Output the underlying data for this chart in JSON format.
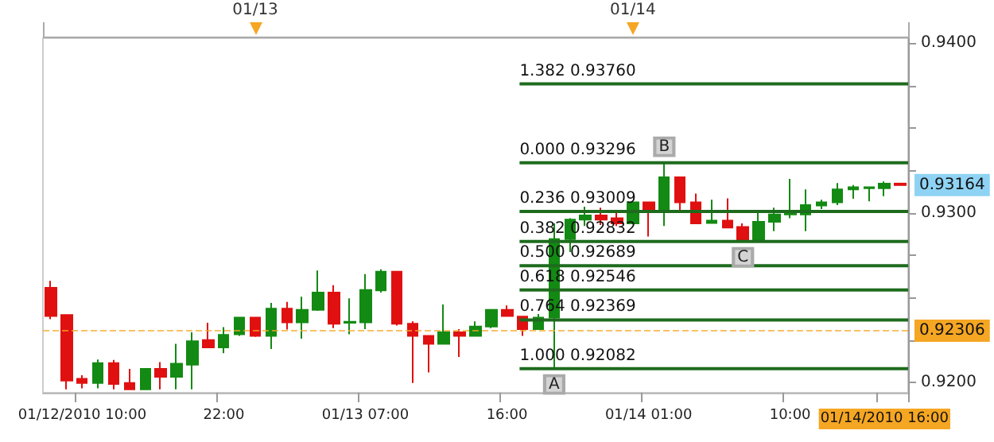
{
  "chart_data": {
    "type": "candlestick",
    "categories": [
      null,
      null,
      "01/12/2010 10:00",
      null,
      null,
      null,
      null,
      null,
      null,
      null,
      null,
      "22:00",
      null,
      null,
      null,
      null,
      null,
      null,
      null,
      null,
      "01/13 07:00",
      null,
      null,
      null,
      null,
      null,
      null,
      null,
      null,
      "16:00",
      null,
      null,
      null,
      null,
      null,
      null,
      null,
      null,
      "01/14 01:00",
      null,
      null,
      null,
      null,
      null,
      null,
      null,
      null,
      "10:00",
      null,
      null,
      null,
      null,
      null,
      "01/14/2010 16:00",
      null
    ],
    "ohlc": [
      [
        0.92559,
        0.92599,
        0.92373,
        0.92392
      ],
      [
        0.92398,
        0.92398,
        0.9196,
        0.92012
      ],
      [
        0.92022,
        0.92043,
        0.91966,
        0.91997
      ],
      [
        0.91997,
        0.92136,
        0.91966,
        0.92114
      ],
      [
        0.92114,
        0.92133,
        0.9196,
        0.91991
      ],
      [
        0.91997,
        0.9208,
        0.9196,
        0.9196
      ],
      [
        0.9196,
        0.9208,
        0.9196,
        0.9208
      ],
      [
        0.9208,
        0.9212,
        0.9196,
        0.92034
      ],
      [
        0.92034,
        0.92228,
        0.9196,
        0.92111
      ],
      [
        0.92105,
        0.92296,
        0.9196,
        0.92244
      ],
      [
        0.9225,
        0.92352,
        0.92207,
        0.92207
      ],
      [
        0.92207,
        0.92327,
        0.92173,
        0.92281
      ],
      [
        0.92284,
        0.92383,
        0.92275,
        0.92383
      ],
      [
        0.92383,
        0.92383,
        0.92269,
        0.92275
      ],
      [
        0.92275,
        0.92469,
        0.92198,
        0.92435
      ],
      [
        0.92435,
        0.92475,
        0.92312,
        0.92355
      ],
      [
        0.92355,
        0.92506,
        0.92259,
        0.92429
      ],
      [
        0.92429,
        0.9266,
        0.92423,
        0.92531
      ],
      [
        0.92531,
        0.92574,
        0.92321,
        0.92346
      ],
      [
        0.92352,
        0.92497,
        0.92284,
        0.92358
      ],
      [
        0.92355,
        0.92639,
        0.92315,
        0.92546
      ],
      [
        0.92543,
        0.92667,
        0.92531,
        0.92654
      ],
      [
        0.92654,
        0.92654,
        0.92336,
        0.92346
      ],
      [
        0.92346,
        0.92361,
        0.91997,
        0.92275
      ],
      [
        0.92275,
        0.92275,
        0.92059,
        0.92228
      ],
      [
        0.92228,
        0.9246,
        0.92228,
        0.92296
      ],
      [
        0.92296,
        0.92315,
        0.92151,
        0.92275
      ],
      [
        0.92275,
        0.92361,
        0.92275,
        0.9233
      ],
      [
        0.9233,
        0.92429,
        0.92321,
        0.92429
      ],
      [
        0.92429,
        0.92454,
        0.92392,
        0.92392
      ],
      [
        0.92389,
        0.92389,
        0.92275,
        0.92315
      ],
      [
        0.92315,
        0.92404,
        0.92315,
        0.92383
      ],
      [
        0.92383,
        0.92938,
        0.92082,
        0.92846
      ],
      [
        0.92846,
        0.92969,
        0.92769,
        0.9296
      ],
      [
        0.9296,
        0.93037,
        0.92923,
        0.92985
      ],
      [
        0.92985,
        0.93031,
        0.92929,
        0.9296
      ],
      [
        0.92969,
        0.93,
        0.92923,
        0.92938
      ],
      [
        0.92938,
        0.93062,
        0.92938,
        0.93062
      ],
      [
        0.93062,
        0.93062,
        0.92861,
        0.93006
      ],
      [
        0.93006,
        0.93296,
        0.92923,
        0.9321
      ],
      [
        0.9321,
        0.9321,
        0.93015,
        0.93062
      ],
      [
        0.93062,
        0.93114,
        0.92938,
        0.92938
      ],
      [
        0.92941,
        0.93077,
        0.92938,
        0.92954
      ],
      [
        0.92954,
        0.93086,
        0.92914,
        0.92914
      ],
      [
        0.92917,
        0.92938,
        0.92832,
        0.92832
      ],
      [
        0.92832,
        0.93015,
        0.92832,
        0.92948
      ],
      [
        0.92948,
        0.93031,
        0.92892,
        0.92991
      ],
      [
        0.92991,
        0.93201,
        0.92969,
        0.93
      ],
      [
        0.92991,
        0.93139,
        0.92892,
        0.93046
      ],
      [
        0.93043,
        0.93077,
        0.93022,
        0.93062
      ],
      [
        0.93062,
        0.93176,
        0.93046,
        0.93139
      ],
      [
        0.93139,
        0.93164,
        0.93083,
        0.93151
      ],
      [
        0.93145,
        0.93154,
        0.93068,
        0.93151
      ],
      [
        0.93145,
        0.93185,
        0.93099,
        0.93173
      ],
      [
        0.93173,
        0.93173,
        0.93164,
        0.93164
      ]
    ],
    "colors": [
      "#e01010",
      "#e01010",
      "#e01010",
      "#138a13",
      "#e01010",
      "#e01010",
      "#138a13",
      "#e01010",
      "#138a13",
      "#138a13",
      "#e01010",
      "#138a13",
      "#138a13",
      "#e01010",
      "#138a13",
      "#e01010",
      "#138a13",
      "#138a13",
      "#e01010",
      "#138a13",
      "#138a13",
      "#138a13",
      "#e01010",
      "#e01010",
      "#e01010",
      "#138a13",
      "#e01010",
      "#138a13",
      "#138a13",
      "#e01010",
      "#e01010",
      "#138a13",
      "#138a13",
      "#138a13",
      "#138a13",
      "#e01010",
      "#e01010",
      "#138a13",
      "#e01010",
      "#138a13",
      "#e01010",
      "#e01010",
      "#138a13",
      "#e01010",
      "#e01010",
      "#138a13",
      "#138a13",
      "#138a13",
      "#138a13",
      "#138a13",
      "#138a13",
      "#138a13",
      "#138a13",
      "#138a13",
      "#e01010"
    ],
    "ylim": [
      0.9194,
      0.9403
    ],
    "yticks": [
      {
        "value": 0.92,
        "label": "0.9200"
      },
      {
        "value": 0.9225,
        "label": null
      },
      {
        "value": 0.925,
        "label": null
      },
      {
        "value": 0.9275,
        "label": null
      },
      {
        "value": 0.93,
        "label": "0.9300"
      },
      {
        "value": 0.9325,
        "label": null
      },
      {
        "value": 0.935,
        "label": null
      },
      {
        "value": 0.9375,
        "label": null
      },
      {
        "value": 0.94,
        "label": "0.9400"
      }
    ],
    "ref_lines": [
      {
        "axis": "y",
        "value": 0.9376,
        "label": "1.382 0.93760",
        "color": "#1e6b1e"
      },
      {
        "axis": "y",
        "value": 0.93296,
        "label": "0.000 0.93296",
        "color": "#1e6b1e"
      },
      {
        "axis": "y",
        "value": 0.93009,
        "label": "0.236 0.93009",
        "color": "#1e6b1e"
      },
      {
        "axis": "y",
        "value": 0.92832,
        "label": "0.382 0.92832",
        "color": "#1e6b1e"
      },
      {
        "axis": "y",
        "value": 0.92689,
        "label": "0.500 0.92689",
        "color": "#1e6b1e"
      },
      {
        "axis": "y",
        "value": 0.92546,
        "label": "0.618 0.92546",
        "color": "#1e6b1e"
      },
      {
        "axis": "y",
        "value": 0.92369,
        "label": "0.764 0.92369",
        "color": "#1e6b1e"
      },
      {
        "axis": "y",
        "value": 0.92082,
        "label": "1.000 0.92082",
        "color": "#1e6b1e"
      },
      {
        "axis": "y",
        "value": 0.92306,
        "label": "0.92306",
        "color": "#f5a623",
        "line_style": "dashed"
      }
    ],
    "annotations": [
      {
        "text": "A",
        "y": 0.92082
      },
      {
        "text": "B",
        "y": 0.93296
      },
      {
        "text": "C",
        "y": 0.92832
      },
      "0.93164",
      "01/13",
      "01/14"
    ],
    "grid": false
  }
}
